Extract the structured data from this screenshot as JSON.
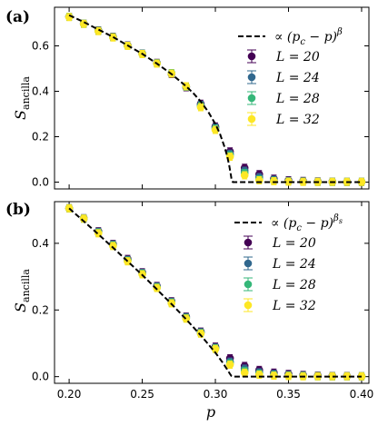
{
  "colors": {
    "L20": "#440154",
    "L24": "#31688e",
    "L28": "#35b779",
    "L32": "#fde725",
    "fit": "#000000"
  },
  "chart_data": [
    {
      "type": "scatter",
      "panel_label": "(a)",
      "xlabel": "",
      "ylabel": "S_ancilla",
      "ylabel_main": "S",
      "ylabel_sub": "ancilla",
      "xlim": [
        0.19,
        0.405
      ],
      "ylim": [
        -0.03,
        0.77
      ],
      "xticks": [
        0.2,
        0.25,
        0.3,
        0.35,
        0.4
      ],
      "xtick_labels": [
        "",
        "",
        "",
        "",
        ""
      ],
      "yticks": [
        0.0,
        0.2,
        0.4,
        0.6
      ],
      "ytick_labels": [
        "0.0",
        "0.2",
        "0.4",
        "0.6"
      ],
      "legend_position": "upper right",
      "fit_label": "∝ (p_c − p)^β",
      "fit_label_main": "∝ (p",
      "fit_label_sub": "c",
      "fit_label_mid": " − p)",
      "fit_label_sup": "β",
      "fit_curve": {
        "x": [
          0.2,
          0.21,
          0.22,
          0.23,
          0.24,
          0.25,
          0.26,
          0.27,
          0.28,
          0.285,
          0.29,
          0.295,
          0.3,
          0.303,
          0.306,
          0.308,
          0.3095,
          0.3105,
          0.311,
          0.3115,
          0.312,
          0.32,
          0.35,
          0.4
        ],
        "y": [
          0.735,
          0.705,
          0.672,
          0.639,
          0.602,
          0.565,
          0.522,
          0.476,
          0.422,
          0.391,
          0.355,
          0.311,
          0.256,
          0.215,
          0.16,
          0.117,
          0.072,
          0.035,
          0.015,
          0.004,
          0.0,
          0.0,
          0.0,
          0.0
        ]
      },
      "series": [
        {
          "name": "L = 20",
          "name_main": "L = 20",
          "color_key": "L20",
          "x": [
            0.2,
            0.21,
            0.22,
            0.23,
            0.24,
            0.25,
            0.26,
            0.27,
            0.28,
            0.29,
            0.3,
            0.31,
            0.32,
            0.33,
            0.34,
            0.35,
            0.36,
            0.37,
            0.38,
            0.39,
            0.4
          ],
          "y": [
            0.728,
            0.698,
            0.668,
            0.64,
            0.602,
            0.566,
            0.525,
            0.476,
            0.418,
            0.345,
            0.245,
            0.135,
            0.063,
            0.035,
            0.015,
            0.008,
            0.005,
            0.003,
            0.002,
            0.001,
            0.001
          ]
        },
        {
          "name": "L = 24",
          "name_main": "L = 24",
          "color_key": "L24",
          "x": [
            0.2,
            0.21,
            0.22,
            0.23,
            0.24,
            0.25,
            0.26,
            0.27,
            0.28,
            0.29,
            0.3,
            0.31,
            0.32,
            0.33,
            0.34,
            0.35,
            0.36,
            0.37,
            0.38,
            0.39,
            0.4
          ],
          "y": [
            0.728,
            0.698,
            0.667,
            0.639,
            0.601,
            0.565,
            0.524,
            0.478,
            0.42,
            0.34,
            0.24,
            0.125,
            0.05,
            0.022,
            0.01,
            0.005,
            0.003,
            0.002,
            0.001,
            0.001,
            0.001
          ]
        },
        {
          "name": "L = 28",
          "name_main": "L = 28",
          "color_key": "L28",
          "x": [
            0.2,
            0.21,
            0.22,
            0.23,
            0.24,
            0.25,
            0.26,
            0.27,
            0.28,
            0.29,
            0.3,
            0.31,
            0.32,
            0.33,
            0.34,
            0.35,
            0.36,
            0.37,
            0.38,
            0.39,
            0.4
          ],
          "y": [
            0.728,
            0.697,
            0.666,
            0.638,
            0.6,
            0.565,
            0.523,
            0.48,
            0.421,
            0.335,
            0.235,
            0.118,
            0.04,
            0.012,
            0.006,
            0.003,
            0.002,
            0.001,
            0.001,
            0.001,
            0.001
          ]
        },
        {
          "name": "L = 32",
          "name_main": "L = 32",
          "color_key": "L32",
          "x": [
            0.2,
            0.21,
            0.22,
            0.23,
            0.24,
            0.25,
            0.26,
            0.27,
            0.28,
            0.29,
            0.3,
            0.31,
            0.32,
            0.33,
            0.34,
            0.35,
            0.36,
            0.37,
            0.38,
            0.39,
            0.4
          ],
          "y": [
            0.727,
            0.697,
            0.665,
            0.637,
            0.6,
            0.564,
            0.522,
            0.478,
            0.422,
            0.33,
            0.23,
            0.112,
            0.03,
            0.008,
            0.004,
            0.002,
            0.001,
            0.001,
            0.001,
            0.001,
            0.001
          ]
        }
      ]
    },
    {
      "type": "scatter",
      "panel_label": "(b)",
      "xlabel": "p",
      "ylabel": "S_ancilla",
      "ylabel_main": "S",
      "ylabel_sub": "ancilla",
      "xlim": [
        0.19,
        0.405
      ],
      "ylim": [
        -0.02,
        0.525
      ],
      "xticks": [
        0.2,
        0.25,
        0.3,
        0.35,
        0.4
      ],
      "xtick_labels": [
        "0.20",
        "0.25",
        "0.30",
        "0.35",
        "0.40"
      ],
      "yticks": [
        0.0,
        0.2,
        0.4
      ],
      "ytick_labels": [
        "0.0",
        "0.2",
        "0.4"
      ],
      "legend_position": "upper right",
      "fit_label": "∝ (p_c − p)^β_s",
      "fit_label_main": "∝ (p",
      "fit_label_sub": "c",
      "fit_label_mid": " − p)",
      "fit_label_sup": "β",
      "fit_label_supsub": "s",
      "fit_curve": {
        "x": [
          0.2,
          0.21,
          0.22,
          0.23,
          0.24,
          0.25,
          0.26,
          0.27,
          0.28,
          0.29,
          0.3,
          0.305,
          0.308,
          0.31,
          0.311,
          0.312,
          0.32,
          0.35,
          0.4
        ],
        "y": [
          0.505,
          0.466,
          0.427,
          0.387,
          0.346,
          0.305,
          0.262,
          0.218,
          0.172,
          0.124,
          0.072,
          0.042,
          0.022,
          0.008,
          0.002,
          0.0,
          0.0,
          0.0,
          0.0
        ]
      },
      "series": [
        {
          "name": "L = 20",
          "name_main": "L = 20",
          "color_key": "L20",
          "x": [
            0.2,
            0.21,
            0.22,
            0.23,
            0.24,
            0.25,
            0.26,
            0.27,
            0.28,
            0.29,
            0.3,
            0.31,
            0.32,
            0.33,
            0.34,
            0.35,
            0.36,
            0.37,
            0.38,
            0.39,
            0.4
          ],
          "y": [
            0.505,
            0.475,
            0.436,
            0.398,
            0.353,
            0.313,
            0.272,
            0.226,
            0.18,
            0.135,
            0.09,
            0.055,
            0.032,
            0.02,
            0.012,
            0.008,
            0.005,
            0.003,
            0.002,
            0.002,
            0.001
          ]
        },
        {
          "name": "L = 24",
          "name_main": "L = 24",
          "color_key": "L24",
          "x": [
            0.2,
            0.21,
            0.22,
            0.23,
            0.24,
            0.25,
            0.26,
            0.27,
            0.28,
            0.29,
            0.3,
            0.31,
            0.32,
            0.33,
            0.34,
            0.35,
            0.36,
            0.37,
            0.38,
            0.39,
            0.4
          ],
          "y": [
            0.505,
            0.475,
            0.434,
            0.396,
            0.35,
            0.311,
            0.27,
            0.224,
            0.178,
            0.133,
            0.087,
            0.045,
            0.024,
            0.013,
            0.008,
            0.005,
            0.003,
            0.002,
            0.001,
            0.001,
            0.001
          ]
        },
        {
          "name": "L = 28",
          "name_main": "L = 28",
          "color_key": "L28",
          "x": [
            0.2,
            0.21,
            0.22,
            0.23,
            0.24,
            0.25,
            0.26,
            0.27,
            0.28,
            0.29,
            0.3,
            0.31,
            0.32,
            0.33,
            0.34,
            0.35,
            0.36,
            0.37,
            0.38,
            0.39,
            0.4
          ],
          "y": [
            0.505,
            0.474,
            0.432,
            0.394,
            0.348,
            0.309,
            0.268,
            0.222,
            0.176,
            0.131,
            0.085,
            0.04,
            0.017,
            0.009,
            0.005,
            0.003,
            0.002,
            0.001,
            0.001,
            0.001,
            0.001
          ]
        },
        {
          "name": "L = 32",
          "name_main": "L = 32",
          "color_key": "L32",
          "x": [
            0.2,
            0.21,
            0.22,
            0.23,
            0.24,
            0.25,
            0.26,
            0.27,
            0.28,
            0.29,
            0.3,
            0.31,
            0.32,
            0.33,
            0.34,
            0.35,
            0.36,
            0.37,
            0.38,
            0.39,
            0.4
          ],
          "y": [
            0.505,
            0.474,
            0.43,
            0.392,
            0.346,
            0.307,
            0.266,
            0.22,
            0.174,
            0.129,
            0.083,
            0.036,
            0.012,
            0.006,
            0.003,
            0.002,
            0.001,
            0.001,
            0.001,
            0.001,
            0.001
          ]
        }
      ]
    }
  ]
}
